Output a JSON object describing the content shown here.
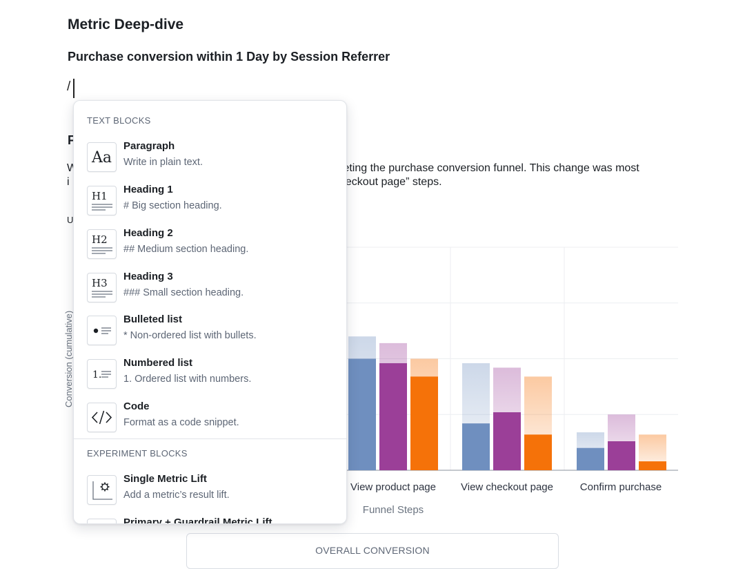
{
  "document": {
    "title": "Metric Deep-dive",
    "chart_heading": "Purchase conversion within 1 Day by Session Referrer",
    "editor_input": "/",
    "partial_heading": "F",
    "partial_para_line1_start": "W",
    "partial_para_line1_end": "pleting the purchase conversion funnel. This change was most",
    "partial_para_line2_start": "i",
    "partial_para_line2_end": "heckout page” steps.",
    "partial_small": "U"
  },
  "chart_data": {
    "type": "bar",
    "ylabel": "Conversion (cumulative)",
    "xlabel": "Funnel Steps",
    "categories_visible": [
      "View product page",
      "View checkout page",
      "Confirm purchase"
    ],
    "series_colors": [
      "#6f8fbf",
      "#9b3f98",
      "#f57209"
    ],
    "ylim": [
      0,
      100
    ],
    "series": [
      {
        "values": [
          50,
          21,
          10
        ],
        "ghost_values": [
          60,
          48,
          17
        ]
      },
      {
        "values": [
          48,
          26,
          13
        ],
        "ghost_values": [
          57,
          46,
          25
        ]
      },
      {
        "values": [
          42,
          16,
          4
        ],
        "ghost_values": [
          50,
          42,
          16
        ]
      }
    ]
  },
  "overall": {
    "title": "OVERALL CONVERSION"
  },
  "menu": {
    "sections": [
      {
        "title": "TEXT BLOCKS",
        "items": [
          {
            "icon": "paragraph-icon",
            "title": "Paragraph",
            "desc": "Write in plain text."
          },
          {
            "icon": "heading-1-icon",
            "title": "Heading 1",
            "desc": "# Big section heading."
          },
          {
            "icon": "heading-2-icon",
            "title": "Heading 2",
            "desc": "## Medium section heading."
          },
          {
            "icon": "heading-3-icon",
            "title": "Heading 3",
            "desc": "### Small section heading."
          },
          {
            "icon": "bulleted-list-icon",
            "title": "Bulleted list",
            "desc": "* Non-ordered list with bullets."
          },
          {
            "icon": "numbered-list-icon",
            "title": "Numbered list",
            "desc": "1. Ordered list with numbers."
          },
          {
            "icon": "code-icon",
            "title": "Code",
            "desc": "Format as a code snippet."
          }
        ]
      },
      {
        "title": "EXPERIMENT BLOCKS",
        "items": [
          {
            "icon": "single-metric-lift-icon",
            "title": "Single Metric Lift",
            "desc": "Add a metric’s result lift."
          },
          {
            "icon": "guardrail-metric-lift-icon",
            "title": "Primary + Guardrail Metric  Lift",
            "desc": ""
          }
        ]
      }
    ],
    "icon_glyphs": {
      "paragraph": "Aa",
      "h1": "H1",
      "h2": "H2",
      "h3": "H3",
      "numbered": "1."
    }
  }
}
